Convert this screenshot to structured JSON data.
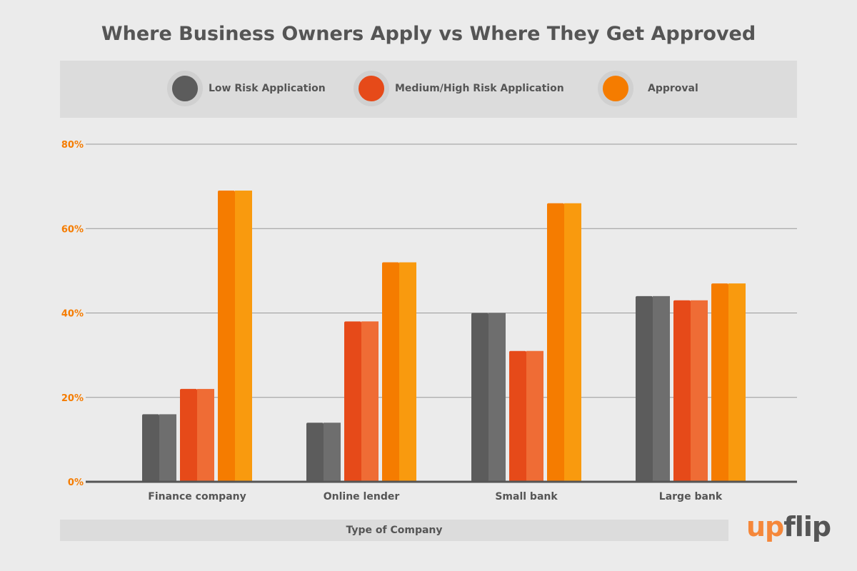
{
  "chart_data": {
    "type": "bar",
    "title": "Where Business Owners Apply vs Where They Get Approved",
    "xlabel": "Type of Company",
    "ylabel": "",
    "categories": [
      "Finance company",
      "Online lender",
      "Small bank",
      "Large bank"
    ],
    "series": [
      {
        "name": "Low Risk Application",
        "values": [
          16,
          14,
          40,
          44
        ],
        "color": "#5c5c5c",
        "color_light": "#6e6e6e"
      },
      {
        "name": "Medium/High Risk Application",
        "values": [
          22,
          38,
          31,
          43
        ],
        "color": "#e64a19",
        "color_light": "#ef6c35"
      },
      {
        "name": "Approval",
        "values": [
          69,
          52,
          66,
          47
        ],
        "color": "#f57c00",
        "color_light": "#f99a0e"
      }
    ],
    "ylim": [
      0,
      80
    ],
    "yticks": [
      "0%",
      "20%",
      "40%",
      "60%",
      "80%"
    ],
    "grid": true,
    "legend": "top"
  },
  "logo": {
    "part1": "up",
    "part2": "flip",
    "color1": "#f5873a",
    "color2": "#555555"
  }
}
